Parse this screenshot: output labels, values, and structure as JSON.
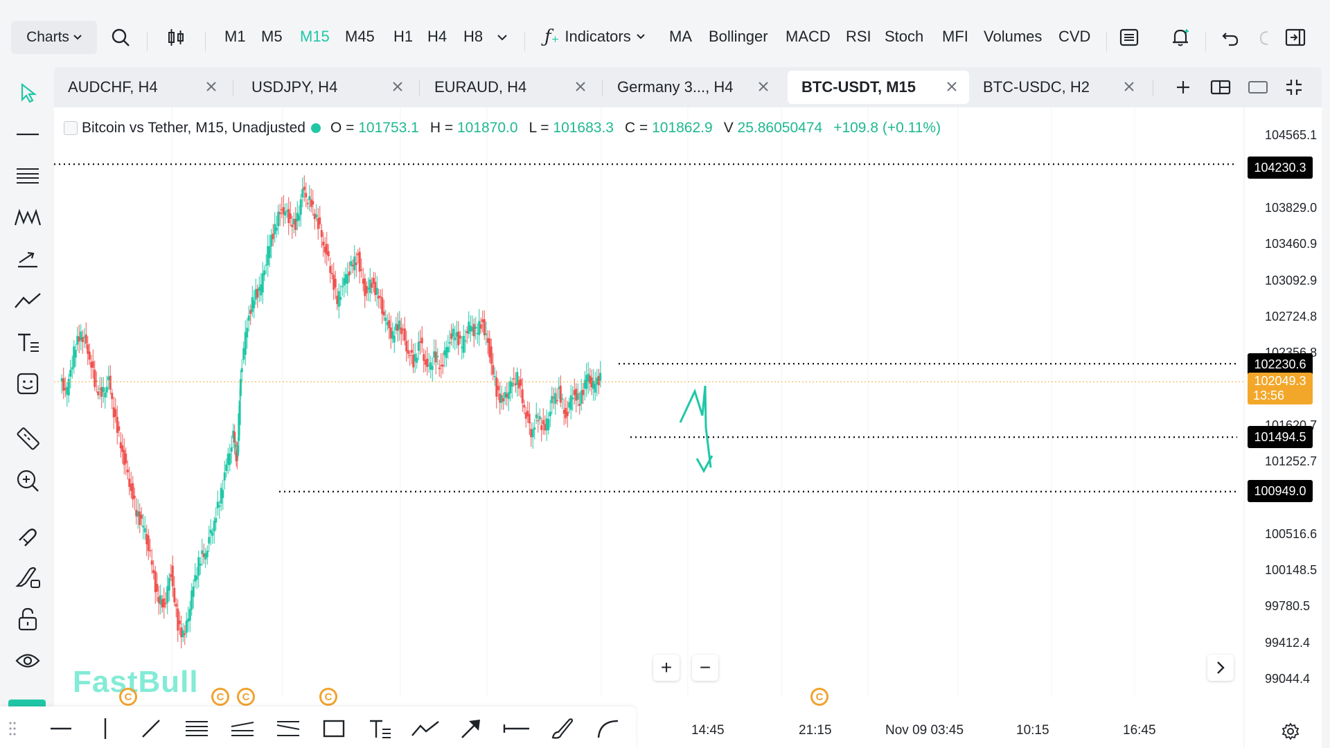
{
  "toolbar": {
    "charts_label": "Charts",
    "timeframes": [
      "M1",
      "M5",
      "M15",
      "M45",
      "H1",
      "H4",
      "H8"
    ],
    "active_timeframe": "M15",
    "indicators_label": "Indicators",
    "indicators": [
      "MA",
      "Bollinger",
      "MACD",
      "RSI",
      "Stoch",
      "MFI",
      "Volumes",
      "CVD"
    ],
    "icons": [
      "search-icon",
      "candlestick-type-icon",
      "function-icon",
      "layers-icon",
      "alert-bell-icon",
      "undo-icon",
      "redo-icon",
      "sidebar-toggle-icon"
    ]
  },
  "tabs": [
    {
      "label": "AUDCHF, H4"
    },
    {
      "label": "USDJPY, H4"
    },
    {
      "label": "EURAUD, H4"
    },
    {
      "label": "Germany 3..., H4"
    },
    {
      "label": "BTC-USDT, M15",
      "active": true
    },
    {
      "label": "BTC-USDC, H2"
    }
  ],
  "legend": {
    "title": "Bitcoin vs Tether, M15, Unadjusted",
    "o_label": "O =",
    "o_value": "101753.1",
    "h_label": "H =",
    "h_value": "101870.0",
    "l_label": "L =",
    "l_value": "101683.3",
    "c_label": "C =",
    "c_value": "101862.9",
    "v_label": "V",
    "v_value": "25.86050474",
    "change": "+109.8 (+0.11%)"
  },
  "price_axis": [
    "104565.1",
    "103829.0",
    "103460.9",
    "103092.9",
    "102724.8",
    "102356.8",
    "101620.7",
    "101252.7",
    "100516.6",
    "100148.5",
    "99780.5",
    "99412.4",
    "99044.4"
  ],
  "price_tags": {
    "level1": "104230.3",
    "level2": "102230.6",
    "current_price": "102049.3",
    "countdown": "13:56",
    "level3": "101494.5",
    "level4": "100949.0"
  },
  "time_axis": [
    "14:45",
    "21:15",
    "Nov 09 03:45",
    "10:15",
    "16:45"
  ],
  "brand": "FastBull",
  "event_marker_glyph": "C",
  "zoom": {
    "in": "+",
    "out": "−"
  },
  "colors": {
    "accent": "#1fc7a6",
    "up": "#1fc7a6",
    "down": "#ef5350",
    "current": "#f3a72a"
  },
  "chart_data": {
    "type": "candlestick",
    "symbol": "BTC-USDT",
    "timeframe": "M15",
    "ylim": [
      98900,
      104800
    ],
    "horizontal_levels": [
      104230.3,
      102230.6,
      101494.5,
      100949.0
    ],
    "current_price": 102049.3
  }
}
